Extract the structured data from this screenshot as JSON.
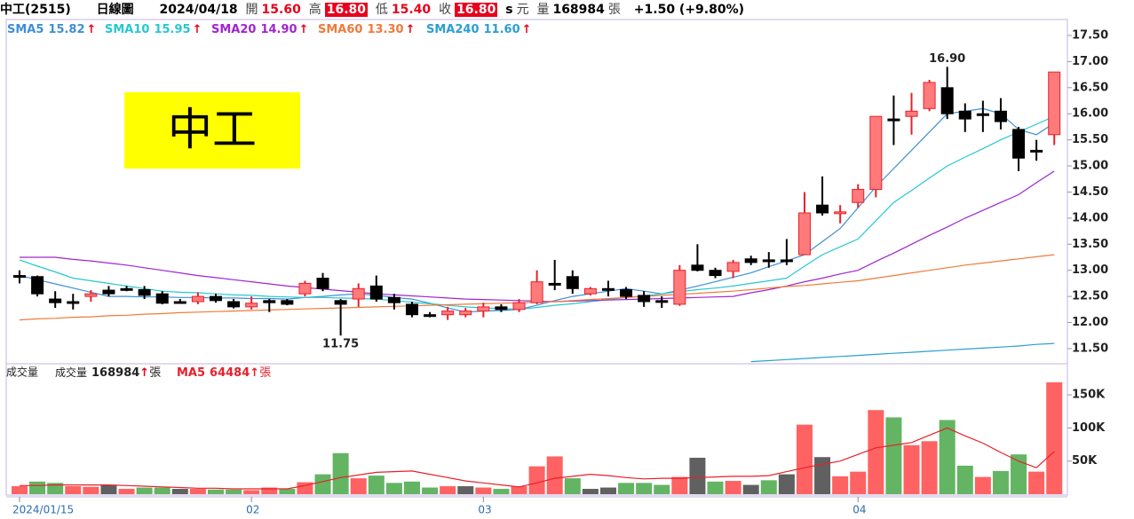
{
  "header": {
    "name": "中工(2515)",
    "period": "日線圖",
    "date": "2024/04/18",
    "open_label": "開",
    "open": "15.60",
    "high_label": "高",
    "high": "16.80",
    "low_label": "低",
    "low": "15.40",
    "close_label": "收",
    "close": "16.80",
    "s": "s",
    "currency": "元",
    "volume_label": "量",
    "volume": "168984",
    "volume_unit": "張",
    "change": "+1.50 (+9.80%)"
  },
  "label_box": "中工",
  "chart_data": [
    {
      "type": "candlestick",
      "categories": [
        "2024/01/15",
        null,
        null,
        null,
        null,
        null,
        null,
        null,
        null,
        null,
        null,
        null,
        null,
        "02",
        null,
        null,
        null,
        null,
        null,
        null,
        null,
        null,
        null,
        null,
        null,
        null,
        "03",
        null,
        null,
        null,
        null,
        null,
        null,
        null,
        null,
        null,
        null,
        null,
        null,
        null,
        null,
        null,
        null,
        null,
        null,
        null,
        null,
        "04",
        null,
        null,
        null,
        null,
        null,
        null,
        null,
        null,
        null,
        null,
        null
      ],
      "open": [
        12.9,
        12.88,
        12.45,
        12.4,
        12.5,
        12.62,
        12.65,
        12.63,
        12.55,
        12.4,
        12.4,
        12.5,
        12.4,
        12.3,
        12.42,
        12.42,
        12.55,
        12.85,
        12.42,
        12.45,
        12.7,
        12.48,
        12.35,
        12.15,
        12.15,
        12.15,
        12.22,
        12.3,
        12.25,
        12.38,
        12.75,
        12.88,
        12.55,
        12.65,
        12.63,
        12.52,
        12.42,
        12.35,
        13.1,
        13.0,
        12.98,
        13.22,
        13.2,
        13.2,
        13.3,
        14.25,
        14.1,
        14.3,
        14.55,
        15.9,
        15.95,
        16.1,
        16.5,
        16.05,
        16.0,
        16.05,
        15.7,
        15.3,
        15.6
      ],
      "high": [
        13.0,
        12.9,
        12.6,
        12.55,
        12.62,
        12.7,
        12.7,
        12.7,
        12.6,
        12.45,
        12.58,
        12.55,
        12.45,
        12.5,
        12.45,
        12.45,
        12.8,
        12.95,
        12.45,
        12.75,
        12.9,
        12.55,
        12.4,
        12.2,
        12.3,
        12.28,
        12.38,
        12.35,
        12.45,
        13.0,
        13.2,
        13.0,
        12.68,
        12.8,
        12.68,
        12.6,
        12.5,
        13.1,
        13.5,
        13.05,
        13.2,
        13.28,
        13.35,
        13.6,
        14.5,
        14.8,
        14.25,
        14.65,
        15.95,
        16.35,
        16.4,
        16.65,
        16.9,
        16.2,
        16.25,
        16.3,
        15.75,
        15.5,
        16.8
      ],
      "low": [
        12.75,
        12.5,
        12.28,
        12.25,
        12.4,
        12.5,
        12.6,
        12.45,
        12.35,
        12.37,
        12.35,
        12.38,
        12.27,
        12.25,
        12.2,
        12.33,
        12.5,
        12.6,
        11.75,
        12.3,
        12.4,
        12.25,
        12.1,
        12.1,
        12.05,
        12.1,
        12.1,
        12.2,
        12.2,
        12.35,
        12.62,
        12.55,
        12.52,
        12.5,
        12.45,
        12.3,
        12.28,
        12.32,
        12.98,
        12.85,
        12.85,
        13.1,
        13.05,
        13.1,
        13.3,
        14.05,
        13.9,
        14.2,
        14.4,
        15.4,
        15.6,
        16.05,
        15.9,
        15.65,
        15.65,
        15.7,
        14.9,
        15.1,
        15.4
      ],
      "close": [
        12.88,
        12.55,
        12.38,
        12.4,
        12.55,
        12.55,
        12.65,
        12.52,
        12.37,
        12.38,
        12.5,
        12.42,
        12.3,
        12.37,
        12.38,
        12.35,
        12.75,
        12.65,
        12.35,
        12.65,
        12.45,
        12.38,
        12.15,
        12.12,
        12.22,
        12.22,
        12.3,
        12.25,
        12.38,
        12.78,
        12.72,
        12.65,
        12.65,
        12.65,
        12.5,
        12.4,
        12.42,
        13.0,
        13.0,
        12.9,
        13.15,
        13.15,
        13.2,
        13.2,
        14.1,
        14.1,
        14.12,
        14.55,
        15.95,
        15.88,
        16.05,
        16.6,
        16.0,
        15.9,
        16.0,
        15.85,
        15.15,
        15.28,
        16.8
      ],
      "up_color": "#ff7b7b",
      "up_edge": "#e8202a",
      "down_color": "#000000",
      "series": [
        {
          "name": "SMA5",
          "legend_value": "15.82",
          "color": "#3d8fd6",
          "values": [
            12.9,
            12.82,
            12.74,
            12.66,
            12.58,
            12.5,
            12.5,
            12.49,
            12.49,
            12.48,
            12.48,
            12.47,
            12.47,
            12.46,
            12.46,
            12.45,
            12.48,
            12.5,
            12.53,
            12.55,
            12.52,
            12.48,
            12.45,
            12.37,
            12.28,
            12.2,
            12.22,
            12.23,
            12.25,
            12.33,
            12.42,
            12.5,
            12.55,
            12.6,
            12.65,
            12.6,
            12.55,
            12.62,
            12.7,
            12.78,
            12.87,
            12.95,
            13.07,
            13.18,
            13.3,
            13.55,
            13.8,
            14.2,
            14.6,
            14.95,
            15.3,
            15.65,
            16.0,
            16.05,
            16.1,
            16.0,
            15.7,
            15.6,
            15.82
          ]
        },
        {
          "name": "SMA10",
          "legend_value": "15.95",
          "color": "#27c8d0",
          "values": [
            13.2,
            13.08,
            12.97,
            12.85,
            12.8,
            12.75,
            12.7,
            12.65,
            12.6,
            12.58,
            12.57,
            12.55,
            12.53,
            12.52,
            12.5,
            12.49,
            12.48,
            12.48,
            12.47,
            12.46,
            12.45,
            12.42,
            12.39,
            12.36,
            12.33,
            12.3,
            12.28,
            12.27,
            12.25,
            12.29,
            12.33,
            12.36,
            12.4,
            12.44,
            12.48,
            12.51,
            12.55,
            12.59,
            12.63,
            12.66,
            12.7,
            12.75,
            12.8,
            12.85,
            13.08,
            13.3,
            13.45,
            13.6,
            13.95,
            14.3,
            14.53,
            14.77,
            15.0,
            15.17,
            15.33,
            15.5,
            15.65,
            15.8,
            15.95
          ]
        },
        {
          "name": "SMA20",
          "legend_value": "14.90",
          "color": "#a025d0",
          "values": [
            13.25,
            13.25,
            13.25,
            13.21,
            13.18,
            13.14,
            13.1,
            13.05,
            13.0,
            12.95,
            12.9,
            12.86,
            12.82,
            12.78,
            12.74,
            12.7,
            12.67,
            12.64,
            12.61,
            12.58,
            12.55,
            12.53,
            12.51,
            12.49,
            12.47,
            12.45,
            12.44,
            12.43,
            12.42,
            12.41,
            12.4,
            12.41,
            12.42,
            12.43,
            12.44,
            12.45,
            12.46,
            12.47,
            12.48,
            12.49,
            12.5,
            12.57,
            12.63,
            12.7,
            12.78,
            12.85,
            12.93,
            13.0,
            13.17,
            13.33,
            13.5,
            13.67,
            13.83,
            14.0,
            14.15,
            14.3,
            14.45,
            14.68,
            14.9
          ]
        },
        {
          "name": "SMA60",
          "legend_value": "13.30",
          "color": "#f07a3a",
          "values": [
            12.05,
            12.07,
            12.08,
            12.1,
            12.11,
            12.13,
            12.14,
            12.16,
            12.17,
            12.19,
            12.2,
            12.21,
            12.22,
            12.23,
            12.24,
            12.25,
            12.26,
            12.27,
            12.28,
            12.29,
            12.3,
            12.31,
            12.32,
            12.33,
            12.34,
            12.35,
            12.36,
            12.37,
            12.38,
            12.39,
            12.4,
            12.42,
            12.44,
            12.46,
            12.48,
            12.5,
            12.52,
            12.54,
            12.56,
            12.58,
            12.6,
            12.63,
            12.66,
            12.69,
            12.71,
            12.74,
            12.77,
            12.8,
            12.85,
            12.9,
            12.95,
            13.0,
            13.05,
            13.1,
            13.14,
            13.18,
            13.22,
            13.26,
            13.3
          ]
        },
        {
          "name": "SMA240",
          "legend_value": "11.60",
          "color": "#2a9fd2",
          "values": [
            null,
            null,
            null,
            null,
            null,
            null,
            null,
            null,
            null,
            null,
            null,
            null,
            null,
            null,
            null,
            null,
            null,
            null,
            null,
            null,
            null,
            null,
            null,
            null,
            null,
            null,
            null,
            null,
            null,
            null,
            null,
            null,
            null,
            null,
            null,
            null,
            null,
            null,
            null,
            null,
            null,
            11.25,
            11.27,
            11.29,
            11.31,
            11.33,
            11.35,
            11.37,
            11.39,
            11.41,
            11.43,
            11.45,
            11.47,
            11.49,
            11.51,
            11.53,
            11.55,
            11.58,
            11.6
          ]
        }
      ],
      "trend_mark": "↑",
      "trend_color": "#e8001c",
      "annotations": [
        {
          "index": 52,
          "value": 16.9,
          "label": "16.90",
          "at": "high"
        },
        {
          "index": 18,
          "value": 11.75,
          "label": "11.75",
          "at": "low"
        }
      ],
      "ylim": [
        11.21,
        17.806
      ],
      "yticks": [
        {
          "value": 11.5,
          "label": "11.50"
        },
        {
          "value": 12,
          "label": "12.00"
        },
        {
          "value": 12.5,
          "label": "12.50"
        },
        {
          "value": 13,
          "label": "13.00"
        },
        {
          "value": 13.5,
          "label": "13.50"
        },
        {
          "value": 14,
          "label": "14.00"
        },
        {
          "value": 14.5,
          "label": "14.50"
        },
        {
          "value": 15,
          "label": "15.00"
        },
        {
          "value": 15.5,
          "label": "15.50"
        },
        {
          "value": 16,
          "label": "16.00"
        },
        {
          "value": 16.5,
          "label": "16.50"
        },
        {
          "value": 17,
          "label": "17.00"
        },
        {
          "value": 17.5,
          "label": "17.50"
        }
      ]
    },
    {
      "type": "bar",
      "title": "成交量",
      "unit": "張",
      "trend_mark": "↑",
      "series": [
        {
          "name": "成交量",
          "values": [
            12000,
            19000,
            17000,
            12000,
            11000,
            14000,
            8000,
            10000,
            10000,
            8000,
            8000,
            7000,
            7000,
            6000,
            10000,
            8000,
            18000,
            30000,
            62000,
            24000,
            28000,
            17000,
            19000,
            10000,
            12000,
            12000,
            10000,
            8000,
            12000,
            42000,
            57000,
            24000,
            8000,
            10000,
            17000,
            17000,
            14000,
            26000,
            55000,
            19000,
            20000,
            14000,
            21000,
            30000,
            105000,
            56000,
            27000,
            34000,
            127000,
            116000,
            74000,
            80000,
            112000,
            43000,
            26000,
            35000,
            60000,
            34000,
            168984
          ],
          "colors": [
            "#ff6262",
            "#63b463",
            "#63b463",
            "#ff6262",
            "#ff6262",
            "#606060",
            "#ff6262",
            "#63b463",
            "#63b463",
            "#606060",
            "#ff6262",
            "#63b463",
            "#63b463",
            "#ff6262",
            "#ff6262",
            "#63b463",
            "#ff6262",
            "#63b463",
            "#63b463",
            "#ff6262",
            "#63b463",
            "#63b463",
            "#63b463",
            "#63b463",
            "#ff6262",
            "#606060",
            "#ff6262",
            "#63b463",
            "#ff6262",
            "#ff6262",
            "#ff6262",
            "#63b463",
            "#606060",
            "#606060",
            "#63b463",
            "#63b463",
            "#63b463",
            "#ff6262",
            "#606060",
            "#63b463",
            "#ff6262",
            "#606060",
            "#63b463",
            "#606060",
            "#ff6262",
            "#606060",
            "#ff6262",
            "#ff6262",
            "#ff6262",
            "#63b463",
            "#ff6262",
            "#ff6262",
            "#63b463",
            "#63b463",
            "#ff6262",
            "#63b463",
            "#63b463",
            "#ff6262",
            "#ff6262"
          ]
        },
        {
          "name": "MA5",
          "type": "line",
          "color": "#e8202a",
          "values": [
            13000,
            13000,
            14000,
            14000,
            14000,
            14000,
            13000,
            12000,
            11000,
            10000,
            9000,
            9000,
            8000,
            8000,
            8000,
            8000,
            13000,
            19000,
            25000,
            29000,
            33000,
            34000,
            35000,
            30000,
            25000,
            20000,
            17000,
            14000,
            11000,
            17000,
            24000,
            27000,
            30000,
            28000,
            25000,
            23000,
            24000,
            24000,
            25000,
            26000,
            27000,
            27000,
            28000,
            34000,
            40000,
            45000,
            50000,
            60000,
            70000,
            74000,
            78000,
            89000,
            100000,
            88000,
            77000,
            63000,
            50000,
            40000,
            64484
          ]
        }
      ],
      "ylim": [
        0,
        197000
      ],
      "yticks": [
        {
          "value": 50000,
          "label": "50K"
        },
        {
          "value": 100000,
          "label": "100K"
        },
        {
          "value": 150000,
          "label": "150K"
        }
      ]
    }
  ]
}
